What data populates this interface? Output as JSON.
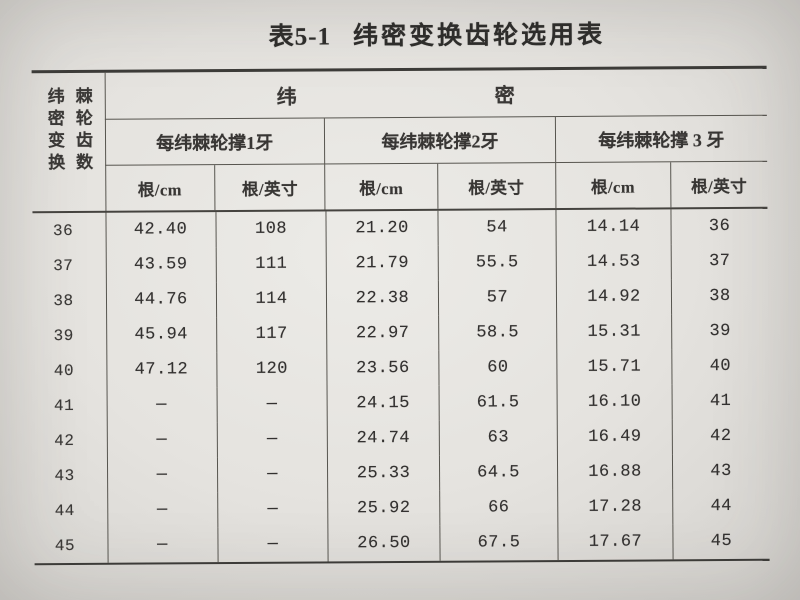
{
  "page": {
    "title_prefix": "表5-1",
    "title": "纬密变换齿轮选用表"
  },
  "table": {
    "corner_header_lines": [
      "纬密变换",
      "棘轮齿数"
    ],
    "spread_header_chars": [
      "纬",
      "密"
    ],
    "group_headers": [
      "每纬棘轮撑1牙",
      "每纬棘轮撑2牙",
      "每纬棘轮撑 3 牙"
    ],
    "unit_headers": [
      "根/cm",
      "根/英寸",
      "根/cm",
      "根/英寸",
      "根/cm",
      "根/英寸"
    ],
    "rows": [
      {
        "gear": "36",
        "cells": [
          "42.40",
          "108",
          "21.20",
          "54",
          "14.14",
          "36"
        ]
      },
      {
        "gear": "37",
        "cells": [
          "43.59",
          "111",
          "21.79",
          "55.5",
          "14.53",
          "37"
        ]
      },
      {
        "gear": "38",
        "cells": [
          "44.76",
          "114",
          "22.38",
          "57",
          "14.92",
          "38"
        ]
      },
      {
        "gear": "39",
        "cells": [
          "45.94",
          "117",
          "22.97",
          "58.5",
          "15.31",
          "39"
        ]
      },
      {
        "gear": "40",
        "cells": [
          "47.12",
          "120",
          "23.56",
          "60",
          "15.71",
          "40"
        ]
      },
      {
        "gear": "41",
        "cells": [
          "—",
          "—",
          "24.15",
          "61.5",
          "16.10",
          "41"
        ]
      },
      {
        "gear": "42",
        "cells": [
          "—",
          "—",
          "24.74",
          "63",
          "16.49",
          "42"
        ]
      },
      {
        "gear": "43",
        "cells": [
          "—",
          "—",
          "25.33",
          "64.5",
          "16.88",
          "43"
        ]
      },
      {
        "gear": "44",
        "cells": [
          "—",
          "—",
          "25.92",
          "66",
          "17.28",
          "44"
        ]
      },
      {
        "gear": "45",
        "cells": [
          "—",
          "—",
          "26.50",
          "67.5",
          "17.67",
          "45"
        ]
      }
    ]
  },
  "colors": {
    "paper": "#e7e5e1",
    "ink": "#343230",
    "rule": "#57554f"
  }
}
